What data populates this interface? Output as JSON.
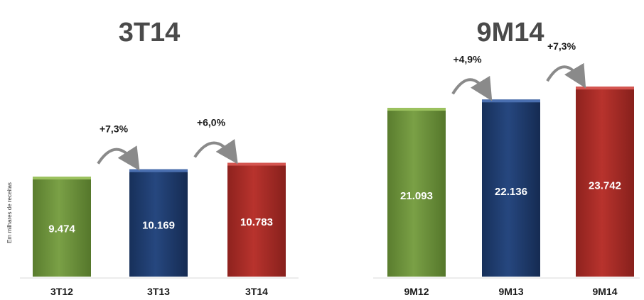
{
  "colors": {
    "green": "#6b8f3a",
    "blue": "#1f3a6b",
    "red": "#a32a25",
    "arrow": "#8a8a8a",
    "axis": "#d0d0d0"
  },
  "chart_data": [
    {
      "type": "bar",
      "title": "3T14",
      "ylabel": "Em milhares de receitas",
      "categories": [
        "3T12",
        "3T13",
        "3T14"
      ],
      "values": [
        9474,
        10169,
        10783
      ],
      "value_labels": [
        "9.474",
        "10.169",
        "10.783"
      ],
      "bar_colors": [
        "green",
        "blue",
        "red"
      ],
      "growth_labels": [
        "+7,3%",
        "+6,0%"
      ],
      "legend": "none",
      "grid": false
    },
    {
      "type": "bar",
      "title": "9M14",
      "ylabel": "",
      "categories": [
        "9M12",
        "9M13",
        "9M14"
      ],
      "values": [
        21093,
        22136,
        23742
      ],
      "value_labels": [
        "21.093",
        "22.136",
        "23.742"
      ],
      "bar_colors": [
        "green",
        "blue",
        "red"
      ],
      "growth_labels": [
        "+4,9%",
        "+7,3%"
      ],
      "legend": "none",
      "grid": false
    }
  ]
}
